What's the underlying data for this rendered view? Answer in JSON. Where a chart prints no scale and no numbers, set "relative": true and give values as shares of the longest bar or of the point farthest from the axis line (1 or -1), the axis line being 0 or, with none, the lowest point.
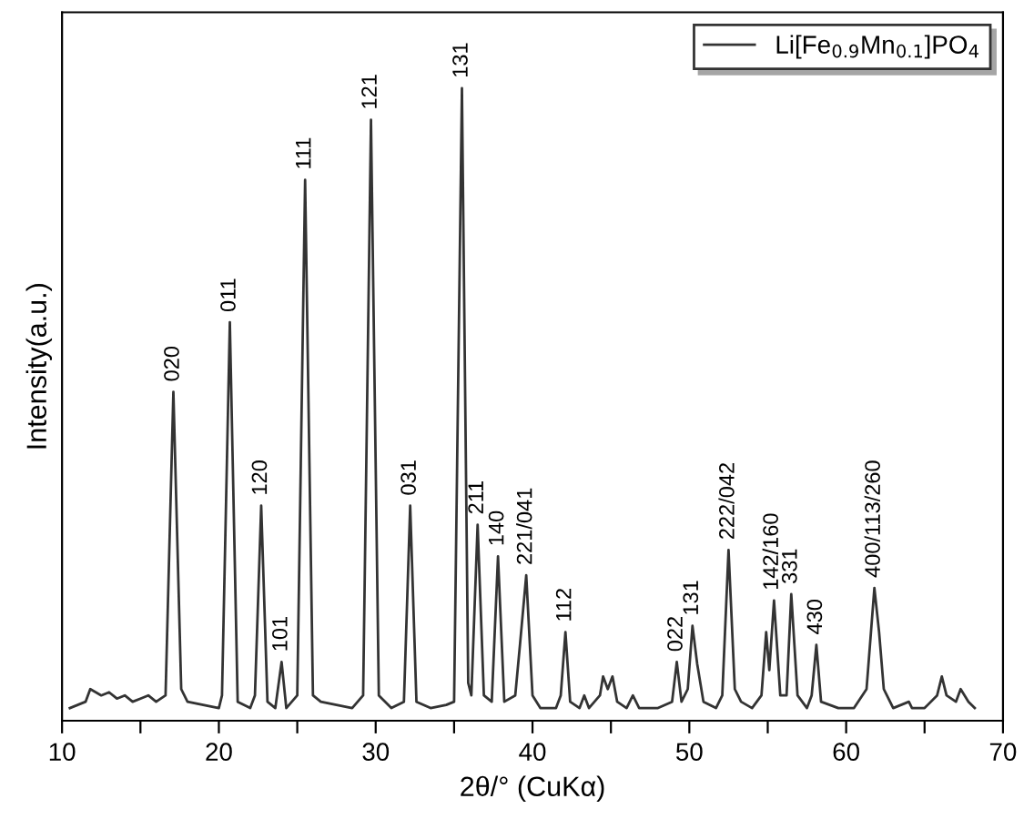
{
  "chart_data": {
    "type": "line",
    "relative": true,
    "xlabel": "2θ/° (CuKα)",
    "ylabel": "Intensity(a.u.)",
    "xlim": [
      10,
      70
    ],
    "xticks": [
      10,
      {
        "value": 15,
        "label": null
      },
      20,
      {
        "value": 25,
        "label": null
      },
      30,
      {
        "value": 35,
        "label": null
      },
      40,
      {
        "value": 45,
        "label": null
      },
      50,
      {
        "value": 55,
        "label": null
      },
      60,
      {
        "value": 65,
        "label": null
      },
      70
    ],
    "legend": "top right",
    "grid": false,
    "series": [
      {
        "name": "Li[Fe$_{0.9}$Mn$_{0.1}$]PO$_{4}$",
        "color": "#333333",
        "x": [
          10.5,
          11.5,
          11.8,
          12.5,
          13,
          13.5,
          14,
          14.5,
          15,
          15.5,
          16,
          16.6,
          17.1,
          17.6,
          18,
          19,
          20,
          20.2,
          20.7,
          21.2,
          22,
          22.3,
          22.7,
          23.1,
          23.6,
          24.0,
          24.3,
          25.0,
          25.5,
          26.0,
          26.5,
          27.5,
          28.5,
          29.2,
          29.7,
          30.2,
          31,
          31.8,
          32.2,
          32.6,
          33.5,
          34.5,
          35.0,
          35.5,
          35.9,
          36.1,
          36.5,
          36.9,
          37.4,
          37.8,
          38.2,
          38.9,
          39.2,
          39.6,
          40.0,
          40.5,
          41.5,
          41.8,
          42.1,
          42.4,
          43,
          43.3,
          43.6,
          44.3,
          44.5,
          44.8,
          45.1,
          45.4,
          46,
          46.4,
          46.8,
          48,
          48.9,
          49.2,
          49.5,
          49.9,
          50.2,
          50.5,
          50.9,
          51.7,
          52.1,
          52.5,
          52.9,
          53.3,
          54,
          54.6,
          54.9,
          55.1,
          55.4,
          55.8,
          56.2,
          56.5,
          56.9,
          57.5,
          57.8,
          58.1,
          58.4,
          59.5,
          60.5,
          61.3,
          61.8,
          62.1,
          62.4,
          63,
          64,
          64.2,
          65,
          65.8,
          66.1,
          66.4,
          67,
          67.3,
          67.8,
          68.2
        ],
        "values": [
          0.02,
          0.03,
          0.05,
          0.04,
          0.045,
          0.035,
          0.04,
          0.03,
          0.035,
          0.04,
          0.03,
          0.04,
          0.52,
          0.05,
          0.03,
          0.025,
          0.02,
          0.04,
          0.63,
          0.03,
          0.02,
          0.04,
          0.34,
          0.03,
          0.02,
          0.093,
          0.02,
          0.04,
          0.855,
          0.04,
          0.03,
          0.025,
          0.02,
          0.04,
          0.95,
          0.04,
          0.02,
          0.03,
          0.34,
          0.03,
          0.02,
          0.025,
          0.03,
          1.0,
          0.06,
          0.04,
          0.31,
          0.04,
          0.03,
          0.26,
          0.03,
          0.04,
          0.12,
          0.23,
          0.04,
          0.02,
          0.02,
          0.04,
          0.14,
          0.03,
          0.02,
          0.04,
          0.02,
          0.04,
          0.07,
          0.05,
          0.07,
          0.03,
          0.02,
          0.04,
          0.02,
          0.02,
          0.03,
          0.093,
          0.03,
          0.05,
          0.15,
          0.09,
          0.03,
          0.02,
          0.04,
          0.27,
          0.05,
          0.03,
          0.02,
          0.04,
          0.14,
          0.08,
          0.19,
          0.04,
          0.04,
          0.2,
          0.04,
          0.02,
          0.04,
          0.12,
          0.03,
          0.02,
          0.02,
          0.05,
          0.21,
          0.14,
          0.05,
          0.02,
          0.03,
          0.02,
          0.02,
          0.04,
          0.07,
          0.04,
          0.03,
          0.05,
          0.03,
          0.02
        ]
      }
    ],
    "annotations": [
      {
        "text": "020",
        "x": 17.1,
        "y": 0.52
      },
      {
        "text": "011",
        "x": 20.7,
        "y": 0.63
      },
      {
        "text": "120",
        "x": 22.7,
        "y": 0.34
      },
      {
        "text": "101",
        "x": 24.0,
        "y": 0.093
      },
      {
        "text": "111",
        "x": 25.5,
        "y": 0.855
      },
      {
        "text": "121",
        "x": 29.7,
        "y": 0.95
      },
      {
        "text": "031",
        "x": 32.2,
        "y": 0.34
      },
      {
        "text": "131",
        "x": 35.5,
        "y": 1.0
      },
      {
        "text": "211",
        "x": 36.5,
        "y": 0.31
      },
      {
        "text": "140",
        "x": 37.8,
        "y": 0.26
      },
      {
        "text": "221/041",
        "x": 39.6,
        "y": 0.23
      },
      {
        "text": "112",
        "x": 42.1,
        "y": 0.14
      },
      {
        "text": "022",
        "x": 49.2,
        "y": 0.093
      },
      {
        "text": "131",
        "x": 50.2,
        "y": 0.15
      },
      {
        "text": "222/042",
        "x": 52.5,
        "y": 0.27
      },
      {
        "text": "142/160",
        "x": 55.3,
        "y": 0.19
      },
      {
        "text": "331",
        "x": 56.5,
        "y": 0.2
      },
      {
        "text": "430",
        "x": 58.1,
        "y": 0.12
      },
      {
        "text": "400/113/260",
        "x": 61.8,
        "y": 0.21
      }
    ]
  }
}
